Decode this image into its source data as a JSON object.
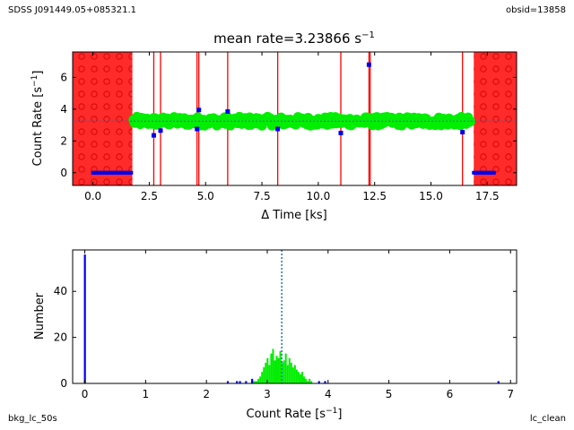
{
  "labels": {
    "top_left": "SDSS J091449.05+085321.1",
    "top_right": "obsid=13858",
    "bottom_left": "bkg_lc_50s",
    "bottom_right": "lc_clean"
  },
  "colors": {
    "gti_excluded": "#ff2a2a",
    "flare_lines": "#ff0000",
    "clean_points": "#00ee00",
    "bad_points": "#0000ee",
    "mean_line": "#1f77b4",
    "histogram_clean": "#00ee00",
    "histogram_bad": "#0000ee"
  },
  "chart_data": [
    {
      "type": "scatter",
      "title": "mean rate=3.23866 s",
      "title_sup": "−1",
      "xlabel": "Δ Time [ks]",
      "ylabel": "Count Rate [s",
      "ylabel_sup": "−1",
      "ylabel_end": "]",
      "xlim": [
        -0.9,
        18.8
      ],
      "ylim": [
        -0.8,
        7.6
      ],
      "xticks": [
        0.0,
        2.5,
        5.0,
        7.5,
        10.0,
        12.5,
        15.0,
        17.5
      ],
      "xtick_labels": [
        "0.0",
        "2.5",
        "5.0",
        "7.5",
        "10.0",
        "12.5",
        "15.0",
        "17.5"
      ],
      "yticks": [
        0,
        2,
        4,
        6
      ],
      "ytick_labels": [
        "0",
        "2",
        "4",
        "6"
      ],
      "mean_rate": 3.23866,
      "excluded_intervals": [
        [
          -0.9,
          1.75
        ],
        [
          16.9,
          18.8
        ]
      ],
      "flare_times": [
        2.7,
        3.0,
        4.62,
        4.7,
        5.98,
        8.2,
        11.0,
        12.25,
        12.3,
        16.4
      ],
      "clean_series": {
        "start": 1.8,
        "end": 16.8,
        "step": 0.05,
        "level": 3.24,
        "scatter": 0.28
      },
      "bad_series": {
        "x": [
          2.7,
          3.0,
          4.62,
          4.7,
          5.98,
          8.2,
          11.0,
          12.25,
          16.4
        ],
        "y": [
          2.35,
          2.65,
          2.75,
          3.95,
          3.85,
          2.75,
          2.5,
          6.8,
          2.55
        ]
      },
      "zero_segments": [
        [
          0.0,
          1.75
        ],
        [
          16.9,
          17.85
        ]
      ],
      "grid": false,
      "legend": "none"
    },
    {
      "type": "bar",
      "xlabel": "Count Rate [s",
      "xlabel_sup": "−1",
      "xlabel_end": "]",
      "ylabel": "Number",
      "xlim": [
        -0.2,
        7.1
      ],
      "ylim": [
        0,
        58
      ],
      "xticks": [
        0,
        1,
        2,
        3,
        4,
        5,
        6,
        7
      ],
      "xtick_labels": [
        "0",
        "1",
        "2",
        "3",
        "4",
        "5",
        "6",
        "7"
      ],
      "yticks": [
        0,
        20,
        40
      ],
      "ytick_labels": [
        "0",
        "20",
        "40"
      ],
      "bin_width": 0.03,
      "mean_rate": 3.23866,
      "clean_hist": {
        "bin_start": 2.75,
        "counts": [
          1,
          1,
          1,
          2,
          3,
          5,
          7,
          9,
          11,
          8,
          13,
          15,
          10,
          12,
          11,
          14,
          9,
          10,
          13,
          8,
          11,
          9,
          7,
          8,
          6,
          5,
          4,
          5,
          3,
          2,
          1,
          2,
          1
        ]
      },
      "bad_hist": [
        {
          "x": 0.0,
          "count": 56
        },
        {
          "x": 2.35,
          "count": 1
        },
        {
          "x": 2.5,
          "count": 1
        },
        {
          "x": 2.55,
          "count": 1
        },
        {
          "x": 2.65,
          "count": 1
        },
        {
          "x": 2.75,
          "count": 2
        },
        {
          "x": 3.85,
          "count": 1
        },
        {
          "x": 3.95,
          "count": 1
        },
        {
          "x": 6.8,
          "count": 1
        }
      ],
      "grid": false,
      "legend": "none"
    }
  ]
}
